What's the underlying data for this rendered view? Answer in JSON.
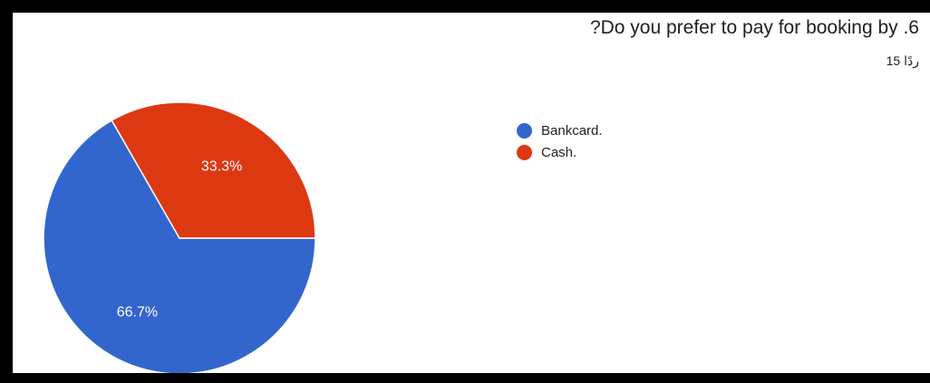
{
  "chart_data": {
    "type": "pie",
    "title": "?Do you prefer to pay for booking by .6",
    "subtitle": "15 ردًا",
    "legend_position": "right",
    "categories": [
      "Bankcard.",
      "Cash."
    ],
    "values": [
      66.7,
      33.3
    ],
    "labels": [
      "66.7%",
      "33.3%"
    ],
    "colors": [
      "#3366cc",
      "#dc3912"
    ]
  }
}
